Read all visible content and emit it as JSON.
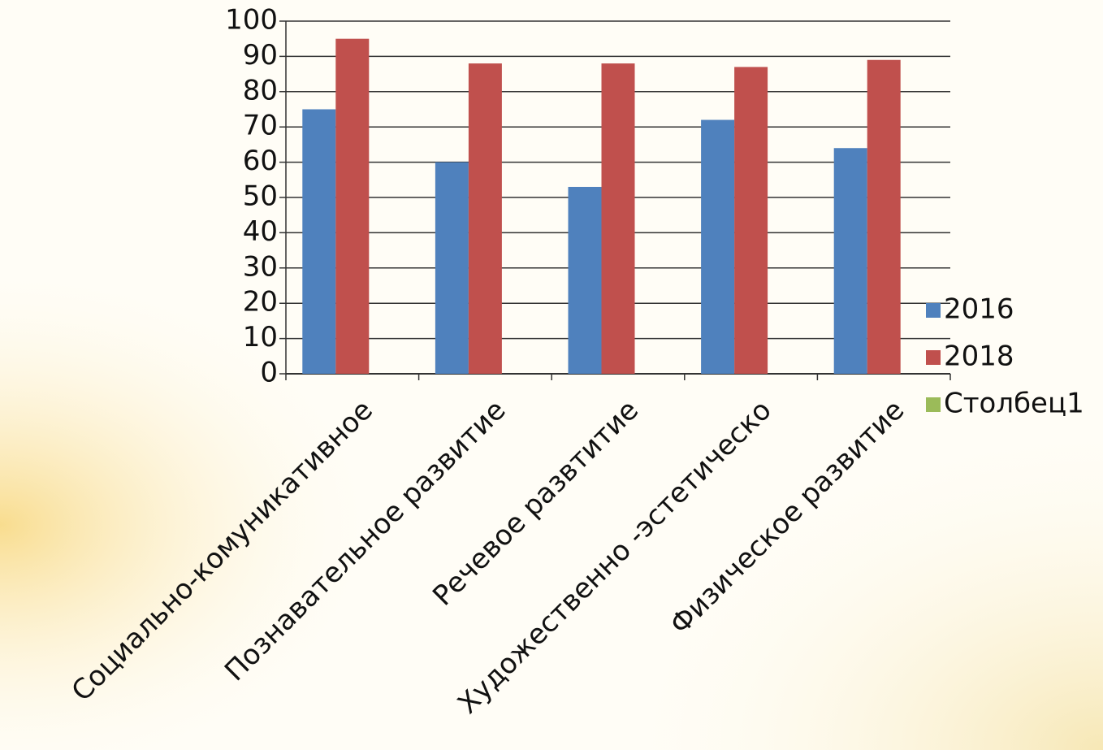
{
  "chart_data": {
    "type": "bar",
    "categories": [
      "Социально-комуникативное",
      "Познавательное развитие",
      "Речевое развтитие",
      "Художественно -эстетическо",
      "Физическое развитие"
    ],
    "series": [
      {
        "name": "2016",
        "color": "#4f81bd",
        "values": [
          75,
          60,
          53,
          72,
          64
        ]
      },
      {
        "name": "2018",
        "color": "#c0504d",
        "values": [
          95,
          88,
          88,
          87,
          89
        ]
      },
      {
        "name": "Столбец1",
        "color": "#9bbb59",
        "values": [
          null,
          null,
          null,
          null,
          null
        ]
      }
    ],
    "ylim": [
      0,
      100
    ],
    "yticks": [
      0,
      10,
      20,
      30,
      40,
      50,
      60,
      70,
      80,
      90,
      100
    ],
    "grid": true,
    "legend": "right"
  }
}
